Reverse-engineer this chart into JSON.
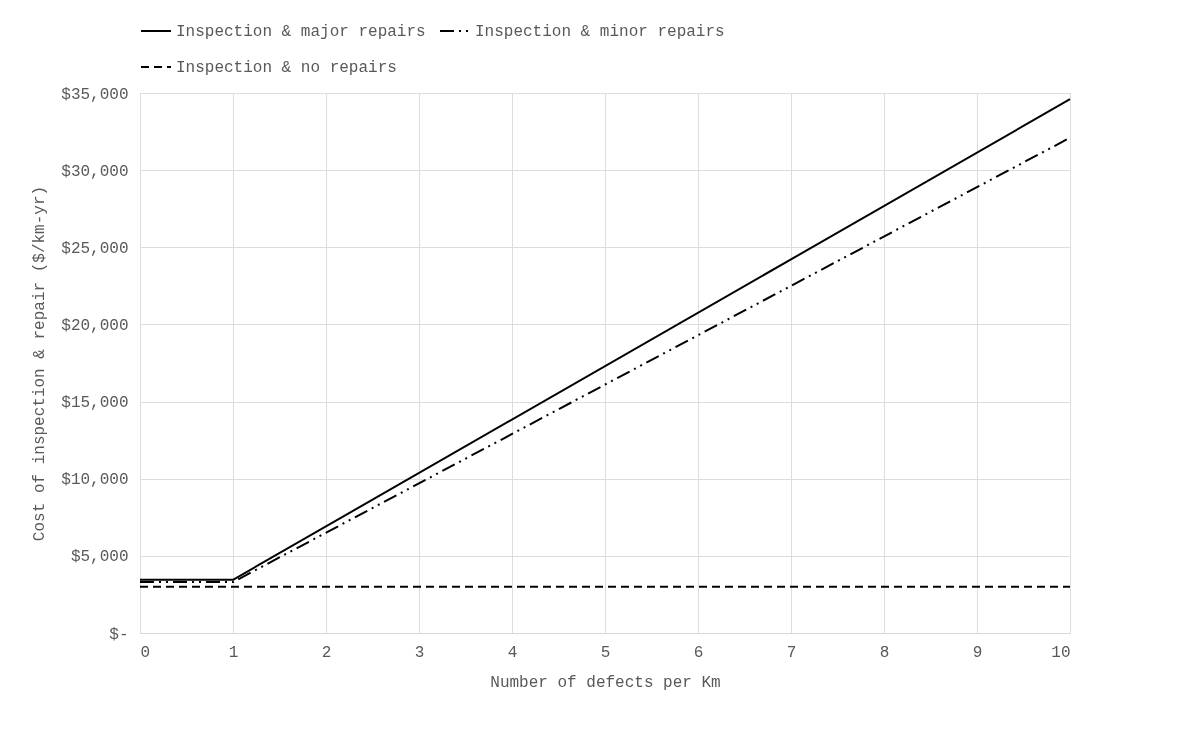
{
  "chart_data": {
    "type": "line",
    "xlabel": "Number of defects per Km",
    "ylabel": "Cost of inspection & repair ($/km-yr)",
    "xlim": [
      0,
      10
    ],
    "xticks": [
      0,
      1,
      2,
      3,
      4,
      5,
      6,
      7,
      8,
      9,
      10
    ],
    "ylim": [
      0,
      35000
    ],
    "yticks": [
      {
        "value": 0,
        "label": "$-"
      },
      {
        "value": 5000,
        "label": "$5,000"
      },
      {
        "value": 10000,
        "label": "$10,000"
      },
      {
        "value": 15000,
        "label": "$15,000"
      },
      {
        "value": 20000,
        "label": "$20,000"
      },
      {
        "value": 25000,
        "label": "$25,000"
      },
      {
        "value": 30000,
        "label": "$30,000"
      },
      {
        "value": 35000,
        "label": "$35,000"
      }
    ],
    "grid": true,
    "legend": "top",
    "marker": "none",
    "series": [
      {
        "name": "Inspection & major repairs",
        "color": "#000000",
        "line_style": "solid",
        "x": [
          0,
          1,
          10
        ],
        "values": [
          3450,
          3450,
          34600
        ]
      },
      {
        "name": "Inspection & minor repairs",
        "color": "#000000",
        "line_style": "dashdotdot",
        "x": [
          0,
          1,
          10
        ],
        "values": [
          3300,
          3300,
          32100
        ]
      },
      {
        "name": "Inspection & no repairs",
        "color": "#000000",
        "line_style": "dashed",
        "x": [
          0,
          1,
          10
        ],
        "values": [
          3000,
          3000,
          3000
        ]
      }
    ]
  }
}
